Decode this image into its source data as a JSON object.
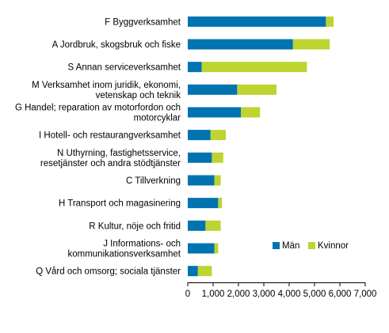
{
  "chart_data": {
    "type": "bar",
    "orientation": "horizontal",
    "stacked": true,
    "categories": [
      [
        "F Byggverksamhet"
      ],
      [
        "A Jordbruk, skogsbruk och fiske"
      ],
      [
        "S Annan serviceverksamhet"
      ],
      [
        "M Verksamhet inom juridik, ekonomi,",
        "vetenskap och teknik"
      ],
      [
        "G Handel; reparation av motorfordon och",
        "motorcyklar"
      ],
      [
        "I Hotell- och restaurangverksamhet"
      ],
      [
        "N Uthyrning, fastighetsservice,",
        "resetjänster och andra stödtjänster"
      ],
      [
        "C Tillverkning"
      ],
      [
        "H Transport och magasinering"
      ],
      [
        "R Kultur, nöje och fritid"
      ],
      [
        "J Informations- och",
        "kommunikationsverksamhet"
      ],
      [
        "Q Vård och omsorg; sociala tjänster"
      ]
    ],
    "series": [
      {
        "name": "Män",
        "color": "#0073b0",
        "values": [
          5450,
          4150,
          550,
          1950,
          2100,
          900,
          950,
          1050,
          1200,
          700,
          1050,
          400
        ]
      },
      {
        "name": "Kvinnor",
        "color": "#bdd431",
        "values": [
          300,
          1450,
          4150,
          1550,
          750,
          600,
          450,
          250,
          150,
          600,
          150,
          550
        ]
      }
    ],
    "xlim": [
      0,
      7000
    ],
    "xticks": [
      "0",
      "1,000",
      "2,000",
      "3,000",
      "4,000",
      "5,000",
      "6,000",
      "7,000"
    ],
    "xlabel": "",
    "ylabel": "",
    "legend_position": "bottom-right, inside plot",
    "grid": false
  }
}
